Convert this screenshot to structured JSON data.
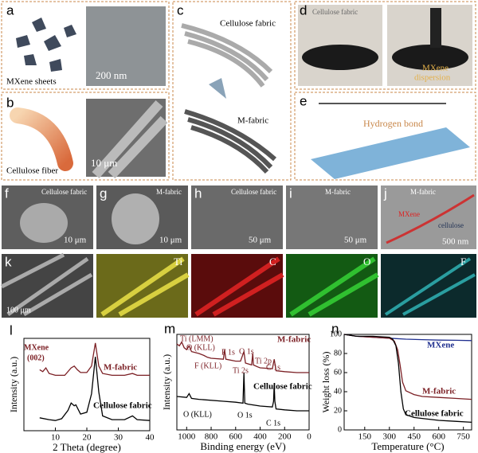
{
  "panels": {
    "a": {
      "letter": "a",
      "texts": [
        "MXene sheets",
        "200 nm"
      ]
    },
    "b": {
      "letter": "b",
      "texts": [
        "Cellulose fiber",
        "10 μm"
      ]
    },
    "c": {
      "letter": "c",
      "texts": [
        "Cellulose fabric",
        "M-fabric"
      ]
    },
    "d": {
      "letter": "d",
      "texts": [
        "Cellulose fabric",
        "MXene",
        "dispersion"
      ]
    },
    "e": {
      "letter": "e",
      "texts": [
        "Hydrogen bond"
      ]
    },
    "f": {
      "letter": "f",
      "texts": [
        "Cellulose fabric",
        "10 μm"
      ]
    },
    "g": {
      "letter": "g",
      "texts": [
        "M-fabric",
        "10 μm"
      ]
    },
    "h": {
      "letter": "h",
      "texts": [
        "Cellulose fabric",
        "50 μm"
      ]
    },
    "i": {
      "letter": "i",
      "texts": [
        "M-fabric",
        "50 μm"
      ]
    },
    "j": {
      "letter": "j",
      "texts": [
        "M-fabric",
        "MXene",
        "cellulose",
        "500 nm"
      ]
    },
    "k": {
      "letter": "k",
      "texts": [
        "100 μm",
        "Ti",
        "C",
        "O",
        "F"
      ]
    }
  },
  "chart_data": [
    {
      "type": "line",
      "letter": "l",
      "xlabel": "2 Theta (degree)",
      "ylabel": "Intensity (a.u.)",
      "xlim": [
        0,
        40
      ],
      "xticks": [
        10,
        20,
        30,
        40
      ],
      "ylim": [
        0,
        100
      ],
      "annotations": [
        "MXene",
        "(002)"
      ],
      "series": [
        {
          "name": "M-fabric",
          "color": "#7b1f24",
          "x": [
            5,
            6,
            7,
            8,
            10,
            13,
            15,
            16,
            17,
            18,
            20,
            21.5,
            22.7,
            23.8,
            25,
            28,
            32,
            34.5,
            36,
            40
          ],
          "values": [
            66,
            64,
            68,
            62,
            60,
            60,
            68,
            70,
            66,
            63,
            63,
            70,
            95,
            70,
            62,
            60,
            60,
            62,
            60,
            60
          ]
        },
        {
          "name": "Cellulose fabric",
          "color": "#000000",
          "x": [
            5,
            8,
            10,
            12,
            14,
            15,
            16,
            16.5,
            18,
            20,
            21.5,
            22.7,
            23.8,
            25,
            28,
            32,
            34.5,
            36,
            40
          ],
          "values": [
            14,
            12,
            11,
            13,
            22,
            30,
            27,
            28,
            18,
            20,
            40,
            80,
            42,
            16,
            12,
            12,
            16,
            12,
            11
          ]
        }
      ]
    },
    {
      "type": "line",
      "letter": "m",
      "xlabel": "Binding energy (eV)",
      "ylabel": "Intensity (a.u.)",
      "xlim": [
        1080,
        0
      ],
      "xticks": [
        1000,
        800,
        600,
        400,
        200,
        0
      ],
      "ylim": [
        0,
        100
      ],
      "annotations": [
        "Ti (LMM)",
        "O (KLL)",
        "F 1s",
        "O 1s",
        "F (KLL)",
        "Ti 2p",
        "Ti 2s",
        "C 1s",
        "O (KLL)",
        "O 1s",
        "C 1s"
      ],
      "series": [
        {
          "name": "M-fabric",
          "color": "#7b1f24",
          "x": [
            1080,
            1060,
            1040,
            1020,
            1000,
            980,
            960,
            900,
            860,
            830,
            800,
            700,
            690,
            680,
            600,
            560,
            532,
            520,
            470,
            460,
            455,
            420,
            400,
            300,
            285,
            270,
            200,
            100,
            0
          ],
          "values": [
            90,
            88,
            92,
            86,
            84,
            88,
            82,
            80,
            78,
            76,
            75,
            74,
            84,
            74,
            72,
            72,
            82,
            70,
            68,
            80,
            68,
            66,
            65,
            64,
            74,
            62,
            61,
            60,
            60
          ]
        },
        {
          "name": "Cellulose fabric",
          "color": "#000000",
          "x": [
            1080,
            1000,
            980,
            960,
            900,
            700,
            600,
            540,
            532,
            525,
            500,
            400,
            300,
            290,
            285,
            280,
            270,
            200,
            100,
            0
          ],
          "values": [
            35,
            34,
            38,
            33,
            32,
            30,
            29,
            28,
            60,
            28,
            27,
            25,
            24,
            30,
            48,
            30,
            22,
            21,
            20,
            20
          ]
        }
      ]
    },
    {
      "type": "line",
      "letter": "n",
      "xlabel": "Temperature (°C)",
      "ylabel": "Weight loss (%)",
      "xlim": [
        25,
        800
      ],
      "xticks": [
        150,
        300,
        450,
        600,
        750
      ],
      "ylim": [
        0,
        100
      ],
      "yticks": [
        0,
        20,
        40,
        60,
        80,
        100
      ],
      "annotations": [],
      "series": [
        {
          "name": "MXene",
          "color": "#1f2f8f",
          "x": [
            25,
            100,
            200,
            300,
            400,
            500,
            600,
            700,
            800
          ],
          "values": [
            100,
            98,
            97,
            96,
            95,
            94.5,
            94,
            93.8,
            93.5
          ]
        },
        {
          "name": "M-fabric",
          "color": "#7b1f24",
          "x": [
            25,
            100,
            200,
            300,
            330,
            350,
            365,
            380,
            400,
            450,
            500,
            600,
            700,
            800
          ],
          "values": [
            100,
            98,
            97,
            96,
            93,
            84,
            68,
            50,
            41,
            37,
            35,
            34,
            33,
            32
          ]
        },
        {
          "name": "Cellulose fabric",
          "color": "#000000",
          "x": [
            25,
            100,
            200,
            300,
            320,
            340,
            355,
            370,
            385,
            400,
            450,
            500,
            600,
            700,
            800
          ],
          "values": [
            100,
            98,
            98,
            97,
            95,
            88,
            70,
            40,
            22,
            16,
            13,
            12,
            10,
            9,
            8
          ]
        }
      ]
    }
  ]
}
